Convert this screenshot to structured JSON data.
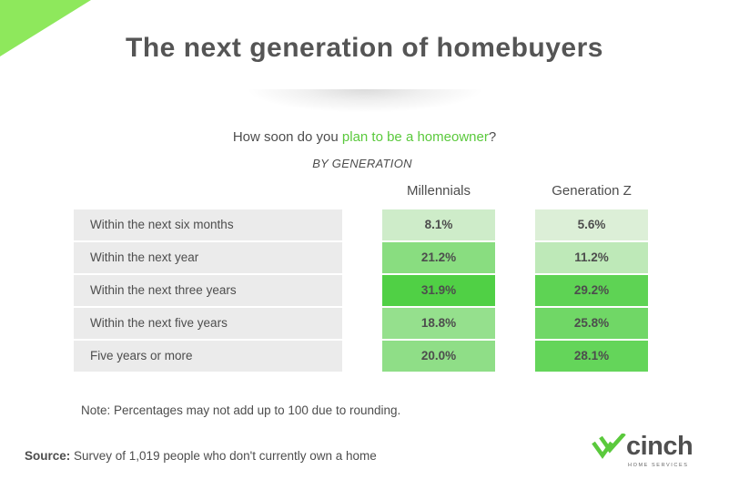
{
  "title": "The next generation of homebuyers",
  "question_prefix": "How soon do you ",
  "question_highlight": "plan to be a homeowner",
  "question_suffix": "?",
  "subtitle": "BY GENERATION",
  "note": "Note: Percentages may not add up to 100 due to rounding.",
  "source_label": "Source:",
  "source_text": " Survey of 1,019 people who don't currently own a home",
  "logo": {
    "word": "cinch",
    "sub": "HOME SERVICES"
  },
  "colors": {
    "accent_green": "#5ac93c",
    "corner_green": "#8ee85c",
    "label_bg": "#ebebeb",
    "text": "#4d4d4d"
  },
  "chart_data": {
    "type": "table",
    "title": "The next generation of homebuyers",
    "subtitle": "How soon do you plan to be a homeowner? BY GENERATION",
    "categories": [
      "Within the next six months",
      "Within the next year",
      "Within the next three years",
      "Within the next five years",
      "Five years or more"
    ],
    "series": [
      {
        "name": "Millennials",
        "values": [
          8.1,
          21.2,
          31.9,
          18.8,
          20.0
        ],
        "labels": [
          "8.1%",
          "21.2%",
          "31.9%",
          "18.8%",
          "20.0%"
        ]
      },
      {
        "name": "Generation Z",
        "values": [
          5.6,
          11.2,
          29.2,
          25.8,
          28.1
        ],
        "labels": [
          "5.6%",
          "11.2%",
          "29.2%",
          "25.8%",
          "28.1%"
        ]
      }
    ],
    "unit": "%",
    "color_scale": {
      "low": "#dff0da",
      "high": "#4fd044",
      "min": 5,
      "max": 32
    },
    "legend": "none",
    "grid": false
  }
}
